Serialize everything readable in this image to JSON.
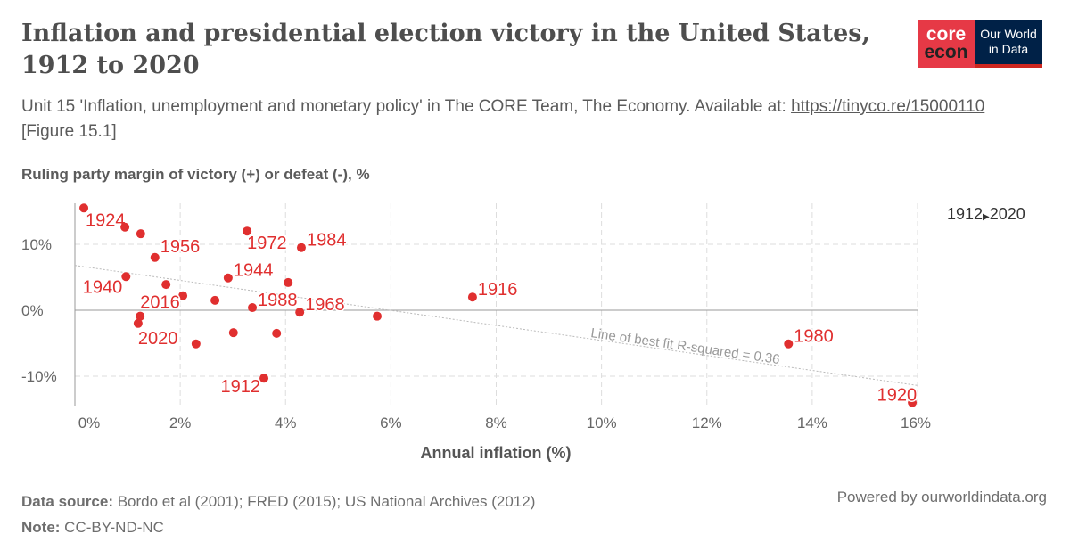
{
  "header": {
    "title": "Inflation and presidential election victory in the United States, 1912 to 2020",
    "subtitle": "Unit 15 'Inflation, unemployment and monetary policy' in The CORE Team, The Economy. Available at: ",
    "link": "https://tinyco.re/15000110",
    "figure": " [Figure 15.1]"
  },
  "logo": {
    "core": "core",
    "econ": "econ",
    "owid1": "Our World",
    "owid2": "in Data"
  },
  "timeline": {
    "start": "1912",
    "end": "2020"
  },
  "footer": {
    "source_label": "Data source:",
    "source": " Bordo et al (2001); FRED (2015); US National Archives (2012)",
    "note_label": "Note:",
    "note": " CC-BY-ND-NC",
    "powered": "Powered by ourworldindata.org"
  },
  "chart_data": {
    "type": "scatter",
    "ylabel": "Ruling party margin of victory (+) or defeat (-), %",
    "xlabel": "Annual inflation (%)",
    "xlim": [
      0,
      16
    ],
    "ylim": [
      -15,
      16
    ],
    "xticks": [
      "0%",
      "2%",
      "4%",
      "6%",
      "8%",
      "10%",
      "12%",
      "14%",
      "16%"
    ],
    "yticks": [
      "-10%",
      "0%",
      "10%"
    ],
    "grid": true,
    "color": "#e02f2f",
    "points": [
      {
        "x": 0.17,
        "y": 15.5,
        "label": "1924"
      },
      {
        "x": 0.95,
        "y": 12.6
      },
      {
        "x": 1.25,
        "y": 11.6
      },
      {
        "x": 1.52,
        "y": 8.0,
        "label": "1956"
      },
      {
        "x": 0.97,
        "y": 5.1,
        "label": "1940"
      },
      {
        "x": 1.73,
        "y": 3.9
      },
      {
        "x": 2.05,
        "y": 2.2
      },
      {
        "x": 2.91,
        "y": 4.9,
        "label": "1944"
      },
      {
        "x": 2.66,
        "y": 1.5
      },
      {
        "x": 3.27,
        "y": 12.0,
        "label": "1972"
      },
      {
        "x": 4.3,
        "y": 9.5,
        "label": "1984"
      },
      {
        "x": 4.05,
        "y": 4.2
      },
      {
        "x": 3.37,
        "y": 0.4,
        "label": "1988"
      },
      {
        "x": 4.27,
        "y": -0.3,
        "label": "1968"
      },
      {
        "x": 5.74,
        "y": -0.9
      },
      {
        "x": 1.24,
        "y": -0.9,
        "label": "2016"
      },
      {
        "x": 1.2,
        "y": -2.0,
        "label": "2020"
      },
      {
        "x": 3.01,
        "y": -3.4
      },
      {
        "x": 3.83,
        "y": -3.5
      },
      {
        "x": 2.3,
        "y": -5.1
      },
      {
        "x": 3.59,
        "y": -10.3,
        "label": "1912"
      },
      {
        "x": 7.55,
        "y": 2.0,
        "label": "1916"
      },
      {
        "x": 13.55,
        "y": -5.1,
        "label": "1980"
      },
      {
        "x": 15.9,
        "y": -14.0,
        "label": "1920"
      }
    ],
    "fit": {
      "label": "Line of best fit R-squared = 0.36",
      "x": [
        0,
        16
      ],
      "y": [
        6.8,
        -11.4
      ]
    }
  }
}
